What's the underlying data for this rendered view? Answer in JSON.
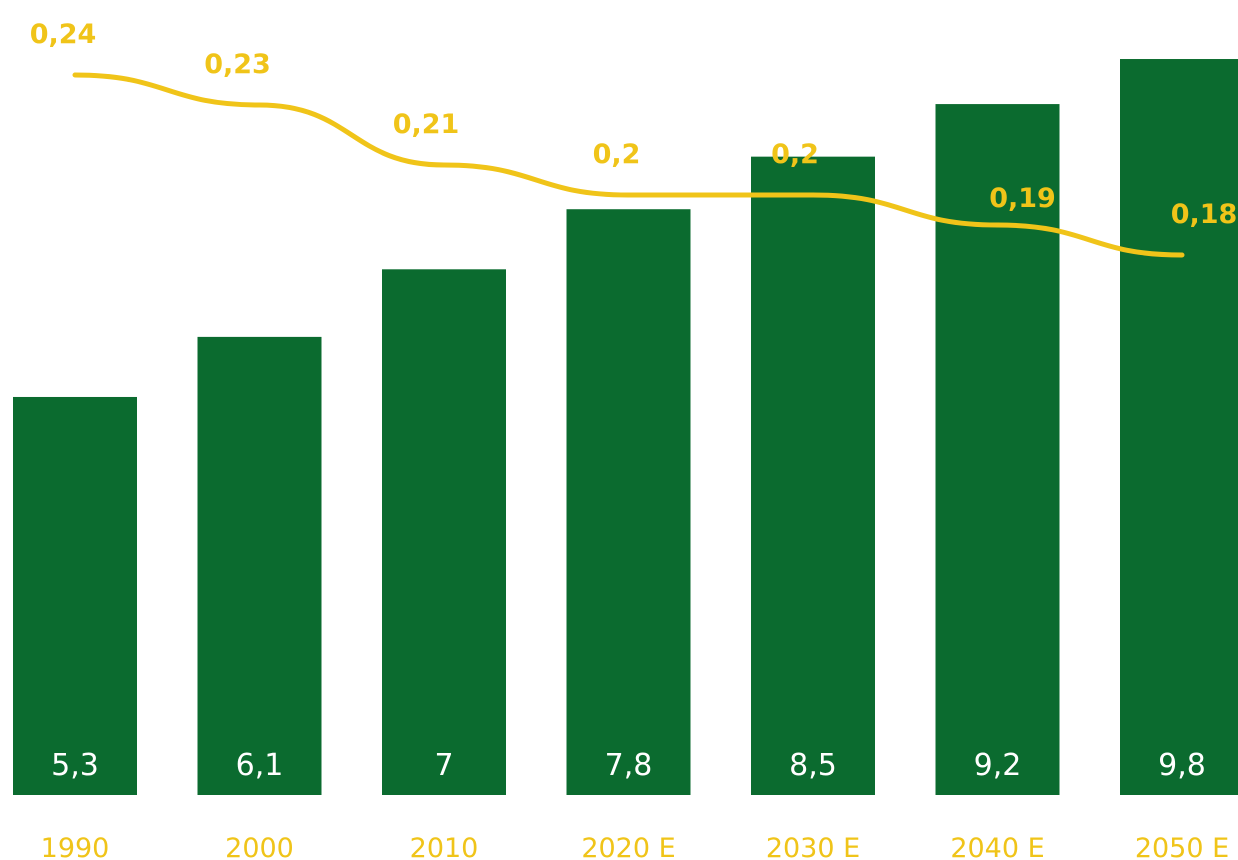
{
  "colors": {
    "bar": "#0b6b2f",
    "line": "#f0c419",
    "bar_label": "#ffffff",
    "tick_label": "#f0c419"
  },
  "chart_data": {
    "type": "bar",
    "categories": [
      "1990",
      "2000",
      "2010",
      "2020 E",
      "2030 E",
      "2040 E",
      "2050 E"
    ],
    "series": [
      {
        "type": "bar",
        "values": [
          5.3,
          6.1,
          7,
          7.8,
          8.5,
          9.2,
          9.8
        ],
        "labels": [
          "5,3",
          "6,1",
          "7",
          "7,8",
          "8,5",
          "9,2",
          "9,8"
        ]
      },
      {
        "type": "line",
        "values": [
          0.24,
          0.23,
          0.21,
          0.2,
          0.2,
          0.19,
          0.18
        ],
        "labels": [
          "0,24",
          "0,23",
          "0,21",
          "0,2",
          "0,2",
          "0,19",
          "0,18"
        ]
      }
    ],
    "title": "",
    "xlabel": "",
    "ylabel": "",
    "grid": false,
    "legend": "none"
  }
}
